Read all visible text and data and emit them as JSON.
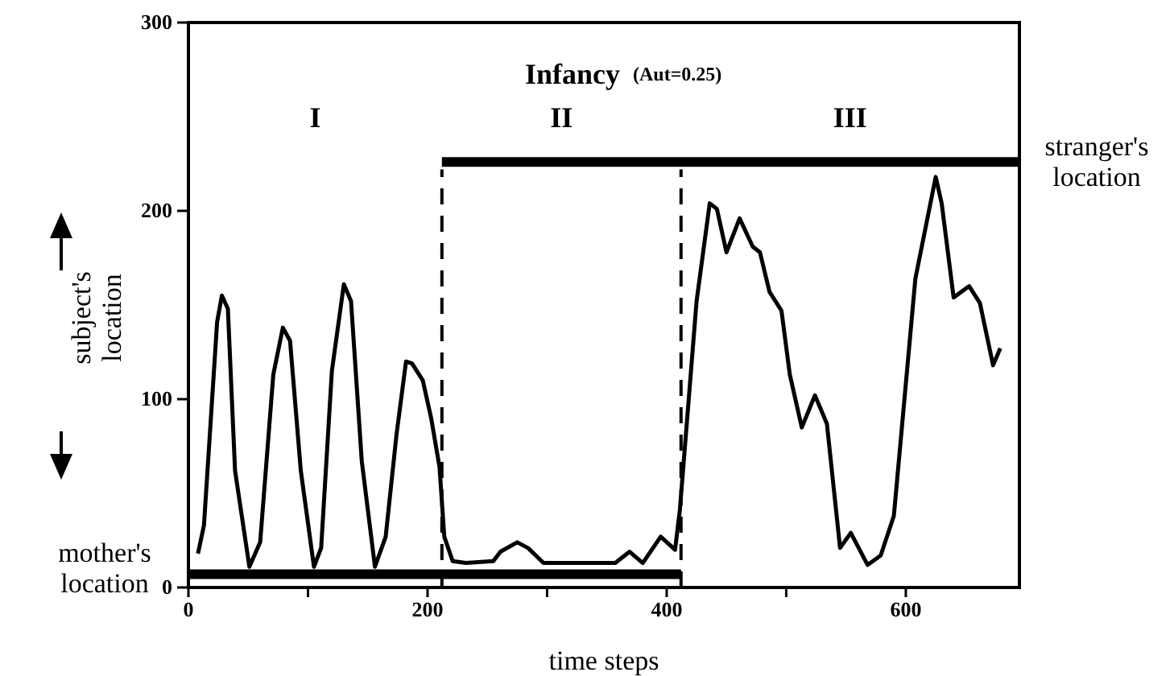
{
  "chart_data": {
    "type": "line",
    "title": "Infancy",
    "subtitle": "(Aut=0.25)",
    "xlabel": "time steps",
    "ylabel": "subject's location",
    "xlim": [
      0,
      695
    ],
    "xticks": [
      0,
      {
        "value": 100,
        "label": null
      },
      200,
      {
        "value": 300,
        "label": null
      },
      400,
      {
        "value": 500,
        "label": null
      },
      600
    ],
    "ylim": [
      0,
      300
    ],
    "yticks": [
      0,
      100,
      200,
      300
    ],
    "grid": false,
    "marker": "none",
    "series": [
      {
        "color": "#000000",
        "line_style": "solid",
        "x": [
          8,
          13,
          24,
          28,
          33,
          39,
          51,
          60,
          71,
          79,
          85,
          94,
          105,
          111,
          120,
          130,
          136,
          145,
          156,
          165,
          174,
          182,
          187,
          196,
          203,
          210,
          214,
          221,
          232,
          255,
          261,
          275,
          284,
          297,
          357,
          369,
          380,
          395,
          407,
          411,
          425,
          436,
          442,
          450,
          461,
          472,
          478,
          486,
          496,
          503,
          513,
          524,
          534,
          545,
          554,
          568,
          579,
          590,
          608,
          625,
          630,
          640,
          653,
          662,
          673,
          679
        ],
        "values": [
          18,
          33,
          141,
          155,
          148,
          62,
          11,
          24,
          113,
          138,
          131,
          62,
          11,
          21,
          115,
          161,
          152,
          67,
          11,
          27,
          81,
          120,
          119,
          110,
          90,
          64,
          27,
          14,
          13,
          14,
          19,
          24,
          21,
          13,
          13,
          19,
          13,
          27,
          20,
          41,
          152,
          204,
          201,
          178,
          196,
          181,
          178,
          157,
          147,
          113,
          85,
          102,
          87,
          21,
          29,
          12,
          17,
          38,
          164,
          218,
          204,
          154,
          160,
          151,
          118,
          127
        ]
      },
      {
        "name": "mother's location",
        "color": "#000000",
        "line_style": "solid",
        "x": [
          0,
          412
        ],
        "values": [
          7,
          7
        ]
      },
      {
        "name": "stranger's location",
        "color": "#000000",
        "line_style": "solid",
        "x": [
          212,
          695
        ],
        "values": [
          226,
          226
        ]
      }
    ],
    "ref_lines": [
      {
        "axis": "x",
        "value": 212,
        "line_style": "dashed",
        "color": "#000000"
      },
      {
        "axis": "x",
        "value": 412,
        "line_style": "dashed",
        "color": "#000000"
      }
    ],
    "annotations": [
      "I",
      "II",
      "III"
    ]
  }
}
